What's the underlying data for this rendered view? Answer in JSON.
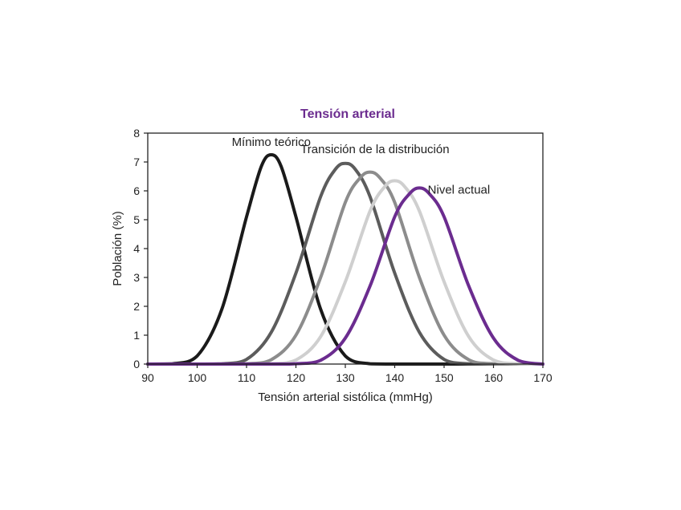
{
  "chart_data": {
    "type": "line",
    "title": "Tensión arterial",
    "title_color": "#6b2c8f",
    "xlabel": "Tensión arterial sistólica (mmHg)",
    "ylabel": "Población (%)",
    "xlim": [
      90,
      170
    ],
    "ylim": [
      0,
      8
    ],
    "x_ticks": [
      "90",
      "100",
      "110",
      "120",
      "130",
      "140",
      "150",
      "160",
      "170"
    ],
    "y_ticks": [
      "0",
      "1",
      "2",
      "3",
      "4",
      "5",
      "6",
      "7",
      "8"
    ],
    "grid": false,
    "legend": "none",
    "series": [
      {
        "name": "Mínimo teórico",
        "color": "#1a1a1a",
        "x": [
          90,
          95,
          100,
          105,
          110,
          113,
          115,
          117,
          120,
          125,
          130,
          135,
          140,
          145,
          150,
          155,
          160,
          170
        ],
        "values": [
          0.0,
          0.01,
          0.28,
          1.9,
          5.1,
          6.85,
          7.25,
          6.85,
          5.1,
          1.9,
          0.28,
          0.01,
          0.0,
          0.0,
          0.0,
          0.0,
          0.0,
          0.0
        ]
      },
      {
        "name": "",
        "color": "#5c5c5c",
        "x": [
          90,
          100,
          105,
          110,
          115,
          120,
          125,
          128,
          130,
          132,
          135,
          140,
          145,
          150,
          155,
          160,
          170
        ],
        "values": [
          0.0,
          0.0,
          0.01,
          0.16,
          1.1,
          3.15,
          5.8,
          6.75,
          6.95,
          6.75,
          5.8,
          3.15,
          1.1,
          0.16,
          0.01,
          0.0,
          0.0
        ]
      },
      {
        "name": "",
        "color": "#8c8c8c",
        "x": [
          90,
          105,
          110,
          115,
          120,
          125,
          130,
          133,
          135,
          137,
          140,
          145,
          150,
          155,
          160,
          170
        ],
        "values": [
          0.0,
          0.0,
          0.01,
          0.15,
          1.0,
          3.0,
          5.6,
          6.45,
          6.65,
          6.45,
          5.6,
          3.0,
          1.0,
          0.15,
          0.01,
          0.0
        ]
      },
      {
        "name": "",
        "color": "#cfcfcf",
        "x": [
          90,
          110,
          115,
          120,
          125,
          130,
          135,
          138,
          140,
          142,
          145,
          150,
          155,
          160,
          165,
          170
        ],
        "values": [
          0.0,
          0.0,
          0.01,
          0.14,
          0.95,
          2.85,
          5.3,
          6.15,
          6.35,
          6.15,
          5.3,
          2.85,
          0.95,
          0.14,
          0.01,
          0.0
        ]
      },
      {
        "name": "Nivel actual",
        "color": "#6b2c8f",
        "x": [
          90,
          115,
          120,
          125,
          130,
          135,
          140,
          143,
          145,
          147,
          150,
          155,
          160,
          165,
          170
        ],
        "values": [
          0.0,
          0.0,
          0.01,
          0.13,
          0.9,
          2.7,
          5.1,
          5.9,
          6.1,
          5.9,
          5.1,
          2.7,
          0.9,
          0.13,
          0.0
        ]
      }
    ],
    "annotations": [
      {
        "text": "Mínimo teórico",
        "x": 115,
        "y": 7.55
      },
      {
        "text": "Transición de la distribución",
        "x": 136,
        "y": 7.3
      },
      {
        "text": "Nivel actual",
        "x": 153,
        "y": 5.9
      }
    ]
  }
}
